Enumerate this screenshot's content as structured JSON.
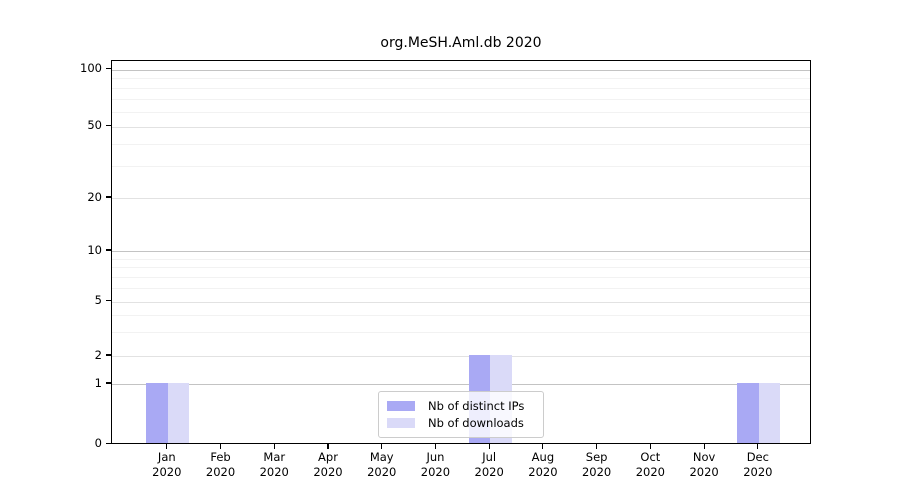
{
  "title": "org.MeSH.Aml.db 2020",
  "colors": {
    "distinct_ips_bar": "#a9a9f4",
    "downloads_bar": "#dadaf8",
    "axis": "#000000",
    "grid_major": "#c3c3c3",
    "grid_minor": "#f2f2f2"
  },
  "legend": {
    "items": [
      {
        "label": "Nb of distinct IPs"
      },
      {
        "label": "Nb of downloads"
      }
    ]
  },
  "chart_data": {
    "type": "bar",
    "title": "org.MeSH.Aml.db 2020",
    "categories": [
      "Jan 2020",
      "Feb 2020",
      "Mar 2020",
      "Apr 2020",
      "May 2020",
      "Jun 2020",
      "Jul 2020",
      "Aug 2020",
      "Sep 2020",
      "Oct 2020",
      "Nov 2020",
      "Dec 2020"
    ],
    "series": [
      {
        "name": "Nb of distinct IPs",
        "color": "#a9a9f4",
        "values": [
          1,
          0,
          0,
          0,
          0,
          0,
          2,
          0,
          0,
          0,
          0,
          1
        ]
      },
      {
        "name": "Nb of downloads",
        "color": "#dadaf8",
        "values": [
          1,
          0,
          0,
          0,
          0,
          0,
          2,
          0,
          0,
          0,
          0,
          1
        ]
      }
    ],
    "xlabel": "",
    "ylabel": "",
    "yscale": "log-like with 0 baseline",
    "yticks": [
      0,
      1,
      2,
      5,
      10,
      20,
      50,
      100
    ],
    "ylim": [
      0,
      110
    ],
    "grid": "horizontal major + log minor gridlines",
    "legend_position": "lower center"
  }
}
